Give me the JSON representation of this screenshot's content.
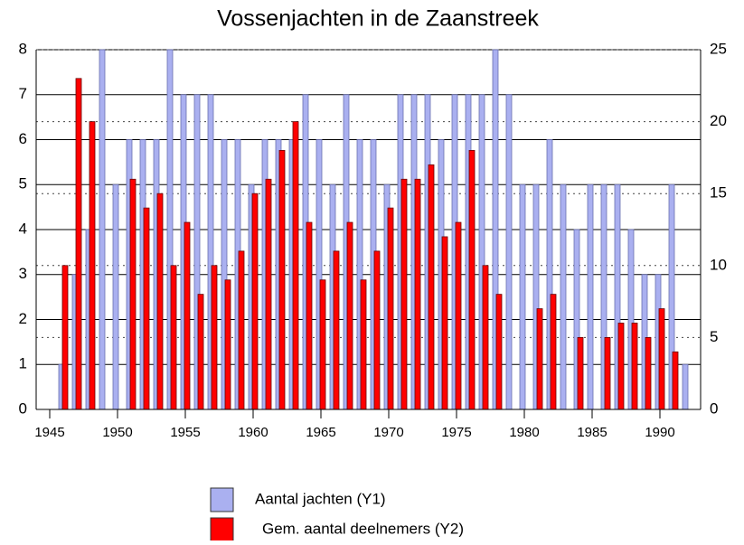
{
  "chart_data": {
    "type": "bar",
    "title": "Vossenjachten in de Zaanstreek",
    "x": [
      1946,
      1947,
      1948,
      1949,
      1950,
      1951,
      1952,
      1953,
      1954,
      1955,
      1956,
      1957,
      1958,
      1959,
      1960,
      1961,
      1962,
      1963,
      1964,
      1965,
      1966,
      1967,
      1968,
      1969,
      1970,
      1971,
      1972,
      1973,
      1974,
      1975,
      1976,
      1977,
      1978,
      1979,
      1980,
      1981,
      1982,
      1983,
      1984,
      1985,
      1986,
      1987,
      1988,
      1989,
      1990,
      1991,
      1992
    ],
    "series": [
      {
        "name": "Aantal jachten (Y1)",
        "color": "#aab0f0",
        "axis": "y",
        "values": [
          1,
          3,
          4,
          8,
          5,
          6,
          6,
          6,
          8,
          7,
          7,
          7,
          6,
          6,
          5,
          6,
          6,
          6,
          7,
          6,
          5,
          7,
          6,
          6,
          5,
          7,
          7,
          7,
          6,
          7,
          7,
          7,
          8,
          7,
          5,
          5,
          6,
          5,
          4,
          5,
          5,
          5,
          4,
          3,
          3,
          5,
          1
        ]
      },
      {
        "name": "Gem. aantal deelnemers (Y2)",
        "color": "#ff0000",
        "axis": "y2",
        "values": [
          10,
          23,
          20,
          null,
          null,
          16,
          14,
          15,
          10,
          13,
          8,
          10,
          9,
          11,
          15,
          16,
          18,
          20,
          13,
          9,
          11,
          13,
          9,
          11,
          14,
          16,
          16,
          17,
          12,
          13,
          18,
          10,
          8,
          null,
          null,
          7,
          8,
          null,
          5,
          null,
          5,
          6,
          6,
          5,
          7,
          4,
          null
        ]
      }
    ],
    "xlim": [
      1944,
      1993
    ],
    "xticks": [
      1945,
      1950,
      1955,
      1960,
      1965,
      1970,
      1975,
      1980,
      1985,
      1990
    ],
    "ylim": [
      0,
      8
    ],
    "yticks": [
      0,
      1,
      2,
      3,
      4,
      5,
      6,
      7,
      8
    ],
    "y2lim": [
      0,
      25
    ],
    "y2ticks": [
      0,
      5,
      10,
      15,
      20,
      25
    ]
  }
}
